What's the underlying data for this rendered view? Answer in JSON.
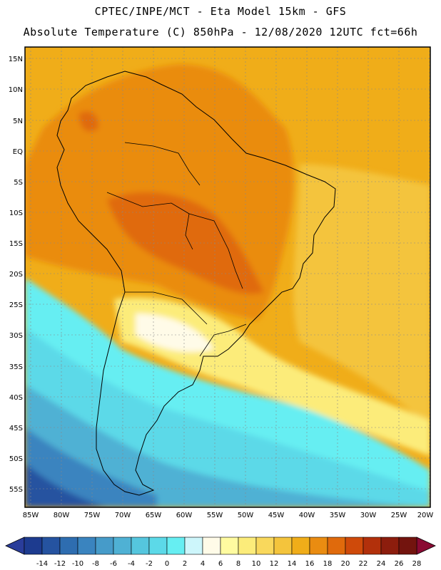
{
  "header": {
    "line1": "CPTEC/INPE/MCT -  Eta Model 15km - GFS",
    "line2": "Absolute Temperature (C) 850hPa - 12/08/2020 12UTC fct=66h"
  },
  "axes": {
    "lat_labels": [
      "15N",
      "10N",
      "5N",
      "EQ",
      "5S",
      "10S",
      "15S",
      "20S",
      "25S",
      "30S",
      "35S",
      "40S",
      "45S",
      "50S",
      "55S"
    ],
    "lon_labels": [
      "85W",
      "80W",
      "75W",
      "70W",
      "65W",
      "60W",
      "55W",
      "50W",
      "45W",
      "40W",
      "35W",
      "30W",
      "25W",
      "20W"
    ]
  },
  "colorbar": {
    "labels": [
      "-14",
      "-12",
      "-10",
      "-8",
      "-6",
      "-4",
      "-2",
      "0",
      "2",
      "4",
      "6",
      "8",
      "10",
      "12",
      "14",
      "16",
      "18",
      "20",
      "22",
      "24",
      "26",
      "28"
    ],
    "colors": [
      "#1d3b8f",
      "#2553a0",
      "#2e6db0",
      "#3a84bf",
      "#469bc9",
      "#4fb1d4",
      "#55c6de",
      "#5cd9e8",
      "#66eef2",
      "#cdf6fb",
      "#fffbe8",
      "#fffba0",
      "#fcec7a",
      "#f9d85c",
      "#f4c43c",
      "#f0ad19",
      "#ea8c11",
      "#e06a0c",
      "#cf4a0a",
      "#b2300b",
      "#8c1d0d",
      "#73140e"
    ],
    "under_color": "#2a3d9a",
    "over_color": "#8a0a33"
  }
}
